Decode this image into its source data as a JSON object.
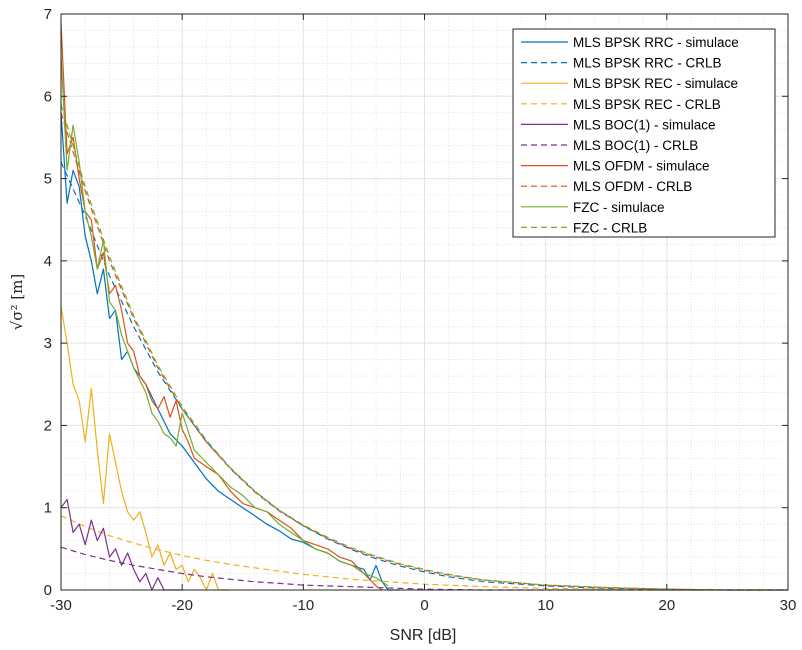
{
  "chart_data": {
    "type": "line",
    "title": "",
    "xlabel": "SNR [dB]",
    "ylabel": "√σ² [m]",
    "xlim": [
      -30,
      30
    ],
    "ylim": [
      0,
      7
    ],
    "x_ticks": [
      "-30",
      "-20",
      "-10",
      "0",
      "10",
      "20",
      "30"
    ],
    "y_ticks": [
      "0",
      "1",
      "2",
      "3",
      "4",
      "5",
      "6",
      "7"
    ],
    "grid": "major-and-minor",
    "legend_position": "top-right",
    "series": [
      {
        "name": "MLS BPSK RRC - simulace",
        "color": "#0072BD",
        "style": "solid",
        "x": [
          -30,
          -29.5,
          -29,
          -28.5,
          -28,
          -27.5,
          -27,
          -26.5,
          -26,
          -25.5,
          -25,
          -24.5,
          -24,
          -23,
          -22,
          -21,
          -20,
          -19,
          -18,
          -17,
          -16,
          -15,
          -14,
          -13,
          -12,
          -11,
          -10,
          -9,
          -8,
          -7,
          -6,
          -5,
          -4.5,
          -4,
          -3.5,
          -3,
          -2
        ],
        "y": [
          5.8,
          4.7,
          5.1,
          4.9,
          4.3,
          4.0,
          3.6,
          3.9,
          3.3,
          3.4,
          2.8,
          2.9,
          2.7,
          2.5,
          2.2,
          1.9,
          1.75,
          1.55,
          1.35,
          1.2,
          1.1,
          1.0,
          0.9,
          0.8,
          0.72,
          0.62,
          0.58,
          0.5,
          0.45,
          0.35,
          0.3,
          0.25,
          0.12,
          0.3,
          0.1,
          0.0,
          0.0
        ]
      },
      {
        "name": "MLS BPSK RRC - CRLB",
        "color": "#0072BD",
        "style": "dashed",
        "x": [
          -30,
          -28,
          -26,
          -24,
          -22,
          -20,
          -18,
          -16,
          -14,
          -12,
          -10,
          -8,
          -6,
          -4,
          -2,
          0,
          2,
          5,
          10,
          15,
          20,
          25,
          30
        ],
        "y": [
          5.2,
          4.55,
          3.82,
          3.2,
          2.65,
          2.2,
          1.8,
          1.48,
          1.2,
          0.97,
          0.78,
          0.62,
          0.49,
          0.38,
          0.29,
          0.22,
          0.16,
          0.1,
          0.05,
          0.02,
          0.01,
          0.0,
          0.0
        ]
      },
      {
        "name": "MLS BPSK REC - simulace",
        "color": "#EDB120",
        "style": "solid",
        "x": [
          -30,
          -29.5,
          -29,
          -28.5,
          -28,
          -27.5,
          -27,
          -26.5,
          -26,
          -25.5,
          -25,
          -24.5,
          -24,
          -23.5,
          -23,
          -22.5,
          -22,
          -21.5,
          -21,
          -20.5,
          -20,
          -19.5,
          -19,
          -18.5,
          -18,
          -17.5,
          -17,
          -16
        ],
        "y": [
          3.45,
          3.0,
          2.5,
          2.3,
          1.8,
          2.45,
          1.7,
          1.05,
          1.9,
          1.55,
          1.2,
          0.95,
          0.85,
          0.95,
          0.7,
          0.4,
          0.55,
          0.3,
          0.45,
          0.25,
          0.3,
          0.1,
          0.25,
          0.15,
          0.0,
          0.2,
          0.0,
          0.0
        ]
      },
      {
        "name": "MLS BPSK REC - CRLB",
        "color": "#EDB120",
        "style": "dashed",
        "x": [
          -30,
          -28,
          -26,
          -24,
          -22,
          -20,
          -18,
          -16,
          -14,
          -12,
          -10,
          -8,
          -6,
          -4,
          -2,
          0,
          5,
          10,
          20,
          30
        ],
        "y": [
          0.9,
          0.77,
          0.66,
          0.57,
          0.49,
          0.42,
          0.36,
          0.31,
          0.27,
          0.23,
          0.19,
          0.16,
          0.13,
          0.11,
          0.09,
          0.07,
          0.04,
          0.02,
          0.0,
          0.0
        ]
      },
      {
        "name": "MLS BOC(1) - simulace",
        "color": "#7E2F8E",
        "style": "solid",
        "x": [
          -30,
          -29.5,
          -29,
          -28.5,
          -28,
          -27.5,
          -27,
          -26.5,
          -26,
          -25.5,
          -25,
          -24.5,
          -24,
          -23.5,
          -23,
          -22.5,
          -22,
          -21.5,
          -21,
          -20
        ],
        "y": [
          1.0,
          1.1,
          0.7,
          0.8,
          0.55,
          0.85,
          0.6,
          0.75,
          0.4,
          0.5,
          0.3,
          0.45,
          0.25,
          0.1,
          0.2,
          0.0,
          0.15,
          0.0,
          0.0,
          0.0
        ]
      },
      {
        "name": "MLS BOC(1) - CRLB",
        "color": "#7E2F8E",
        "style": "dashed",
        "x": [
          -30,
          -28,
          -26,
          -24,
          -22,
          -20,
          -18,
          -16,
          -14,
          -12,
          -10,
          -8,
          -6,
          -4,
          -2,
          0,
          5,
          10,
          20,
          30
        ],
        "y": [
          0.52,
          0.43,
          0.36,
          0.3,
          0.25,
          0.2,
          0.16,
          0.13,
          0.1,
          0.08,
          0.06,
          0.05,
          0.04,
          0.03,
          0.02,
          0.01,
          0.0,
          0.0,
          0.0,
          0.0
        ]
      },
      {
        "name": "MLS OFDM - simulace",
        "color": "#D95319",
        "style": "solid",
        "x": [
          -30,
          -29.5,
          -29,
          -28.5,
          -28,
          -27.5,
          -27,
          -26.5,
          -26,
          -25.5,
          -25,
          -24.5,
          -24,
          -23.5,
          -23,
          -22.5,
          -22,
          -21.5,
          -21,
          -20.5,
          -20,
          -19.5,
          -19,
          -18,
          -17,
          -16,
          -15,
          -14,
          -13,
          -12,
          -11,
          -10,
          -9,
          -8,
          -7,
          -6,
          -5,
          -4,
          -3.5
        ],
        "y": [
          6.9,
          5.3,
          5.5,
          5.0,
          4.6,
          4.5,
          3.9,
          4.1,
          3.6,
          3.7,
          3.4,
          3.0,
          2.9,
          2.6,
          2.5,
          2.3,
          2.2,
          2.35,
          2.1,
          2.3,
          1.95,
          1.8,
          1.6,
          1.5,
          1.4,
          1.2,
          1.05,
          1.0,
          0.95,
          0.85,
          0.75,
          0.6,
          0.55,
          0.5,
          0.4,
          0.35,
          0.2,
          0.05,
          0.0
        ]
      },
      {
        "name": "MLS OFDM - CRLB",
        "color": "#D95319",
        "style": "dashed",
        "x": [
          -30,
          -28,
          -26,
          -24,
          -22,
          -20,
          -18,
          -16,
          -14,
          -12,
          -10,
          -8,
          -6,
          -4,
          -2,
          0,
          2,
          5,
          10,
          15,
          20,
          25,
          30
        ],
        "y": [
          5.8,
          4.85,
          4.0,
          3.3,
          2.7,
          2.2,
          1.8,
          1.47,
          1.19,
          0.96,
          0.78,
          0.63,
          0.5,
          0.4,
          0.31,
          0.24,
          0.18,
          0.12,
          0.06,
          0.03,
          0.01,
          0.0,
          0.0
        ]
      },
      {
        "name": "FZC - simulace",
        "color": "#77AC30",
        "style": "solid",
        "x": [
          -30,
          -29.5,
          -29,
          -28.5,
          -28,
          -27.5,
          -27,
          -26.5,
          -26,
          -25.5,
          -25,
          -24.5,
          -24,
          -23.5,
          -23,
          -22.5,
          -22,
          -21.5,
          -21,
          -20.5,
          -20,
          -19,
          -18,
          -17,
          -16,
          -15,
          -14,
          -13,
          -12,
          -11,
          -10,
          -9,
          -8,
          -7,
          -6,
          -5,
          -4,
          -3
        ],
        "y": [
          6.5,
          5.1,
          5.65,
          5.2,
          4.6,
          4.3,
          3.9,
          4.25,
          3.5,
          3.4,
          3.1,
          2.9,
          2.7,
          2.55,
          2.4,
          2.15,
          2.05,
          1.9,
          1.85,
          1.75,
          2.15,
          1.7,
          1.55,
          1.4,
          1.25,
          1.15,
          1.0,
          0.95,
          0.8,
          0.7,
          0.6,
          0.5,
          0.45,
          0.35,
          0.3,
          0.2,
          0.15,
          0.05
        ]
      },
      {
        "name": "FZC - CRLB",
        "color": "#77AC30",
        "style": "dashed",
        "x": [
          -30,
          -28,
          -26,
          -24,
          -22,
          -20,
          -18,
          -16,
          -14,
          -12,
          -10,
          -8,
          -6,
          -4,
          -2,
          0,
          2,
          5,
          10,
          15,
          20,
          25,
          30
        ],
        "y": [
          5.9,
          4.9,
          4.05,
          3.33,
          2.73,
          2.23,
          1.82,
          1.48,
          1.2,
          0.97,
          0.79,
          0.64,
          0.51,
          0.41,
          0.32,
          0.25,
          0.19,
          0.12,
          0.06,
          0.03,
          0.01,
          0.0,
          0.0
        ]
      }
    ]
  }
}
